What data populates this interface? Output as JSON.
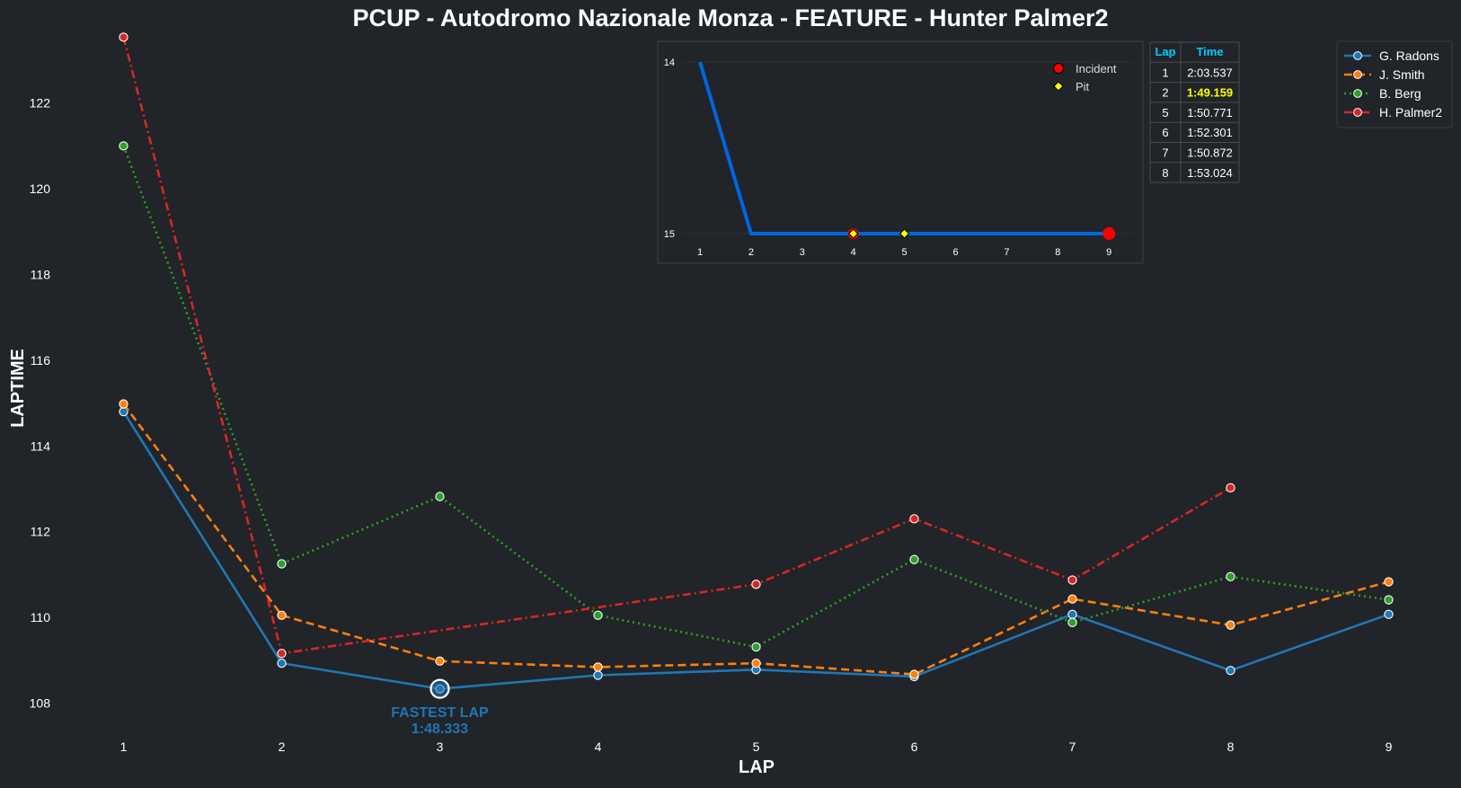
{
  "chart_data": [
    {
      "type": "line",
      "title": "PCUP - Autodromo Nazionale Monza - FEATURE - Hunter Palmer2",
      "xlabel": "LAP",
      "ylabel": "LAPTIME",
      "x": [
        1,
        2,
        3,
        4,
        5,
        6,
        7,
        8,
        9
      ],
      "xlim": [
        0.5,
        9.5
      ],
      "ylim": [
        107.2,
        123.6
      ],
      "yticks": [
        108,
        110,
        112,
        114,
        116,
        118,
        120,
        122
      ],
      "grid": false,
      "legend_position": "top-right",
      "series": [
        {
          "name": "G. Radons",
          "color": "#1f77b4",
          "style": "solid",
          "values": [
            114.8,
            108.93,
            108.333,
            108.65,
            108.78,
            108.62,
            110.07,
            108.76,
            110.07
          ]
        },
        {
          "name": "J. Smith",
          "color": "#ff7f0e",
          "style": "dashed",
          "values": [
            114.98,
            110.05,
            108.98,
            108.84,
            108.93,
            108.67,
            110.43,
            109.82,
            110.83
          ]
        },
        {
          "name": "B. Berg",
          "color": "#2ca02c",
          "style": "dotted",
          "values": [
            121.0,
            111.25,
            112.82,
            110.05,
            109.31,
            111.35,
            109.88,
            110.95,
            110.41
          ]
        },
        {
          "name": "H. Palmer2",
          "color": "#d62728",
          "style": "dashdot",
          "values": [
            123.537,
            109.159,
            null,
            null,
            110.771,
            112.301,
            110.872,
            113.024,
            null
          ]
        }
      ],
      "annotation": {
        "line1": "FASTEST LAP",
        "line2": "1:48.333",
        "x": 3,
        "y": 108.333,
        "color": "#1f77b4"
      }
    },
    {
      "type": "line",
      "title": "",
      "x": [
        1,
        2,
        3,
        4,
        5,
        6,
        7,
        8,
        9
      ],
      "position_values": [
        14,
        15,
        15,
        15,
        15,
        15,
        15,
        15,
        15
      ],
      "ylim": [
        15.08,
        13.92
      ],
      "yticks": [
        14,
        15
      ],
      "line_color": "#0066dd",
      "incidents": [
        4,
        9
      ],
      "pits": [
        4,
        5
      ],
      "incident_label": "Incident",
      "pit_label": "Pit",
      "incident_color": "#ff0000",
      "pit_color": "#ffff00"
    }
  ],
  "lap_table": {
    "headers": [
      "Lap",
      "Time"
    ],
    "rows": [
      {
        "lap": "1",
        "time": "2:03.537",
        "best": false
      },
      {
        "lap": "2",
        "time": "1:49.159",
        "best": true
      },
      {
        "lap": "5",
        "time": "1:50.771",
        "best": false
      },
      {
        "lap": "6",
        "time": "1:52.301",
        "best": false
      },
      {
        "lap": "7",
        "time": "1:50.872",
        "best": false
      },
      {
        "lap": "8",
        "time": "1:53.024",
        "best": false
      }
    ],
    "header_color": "#00ccff",
    "best_color": "#ffff00"
  },
  "colors": {
    "background": "#212429",
    "text": "#ffffff",
    "panel_border": "#3a3d42"
  }
}
